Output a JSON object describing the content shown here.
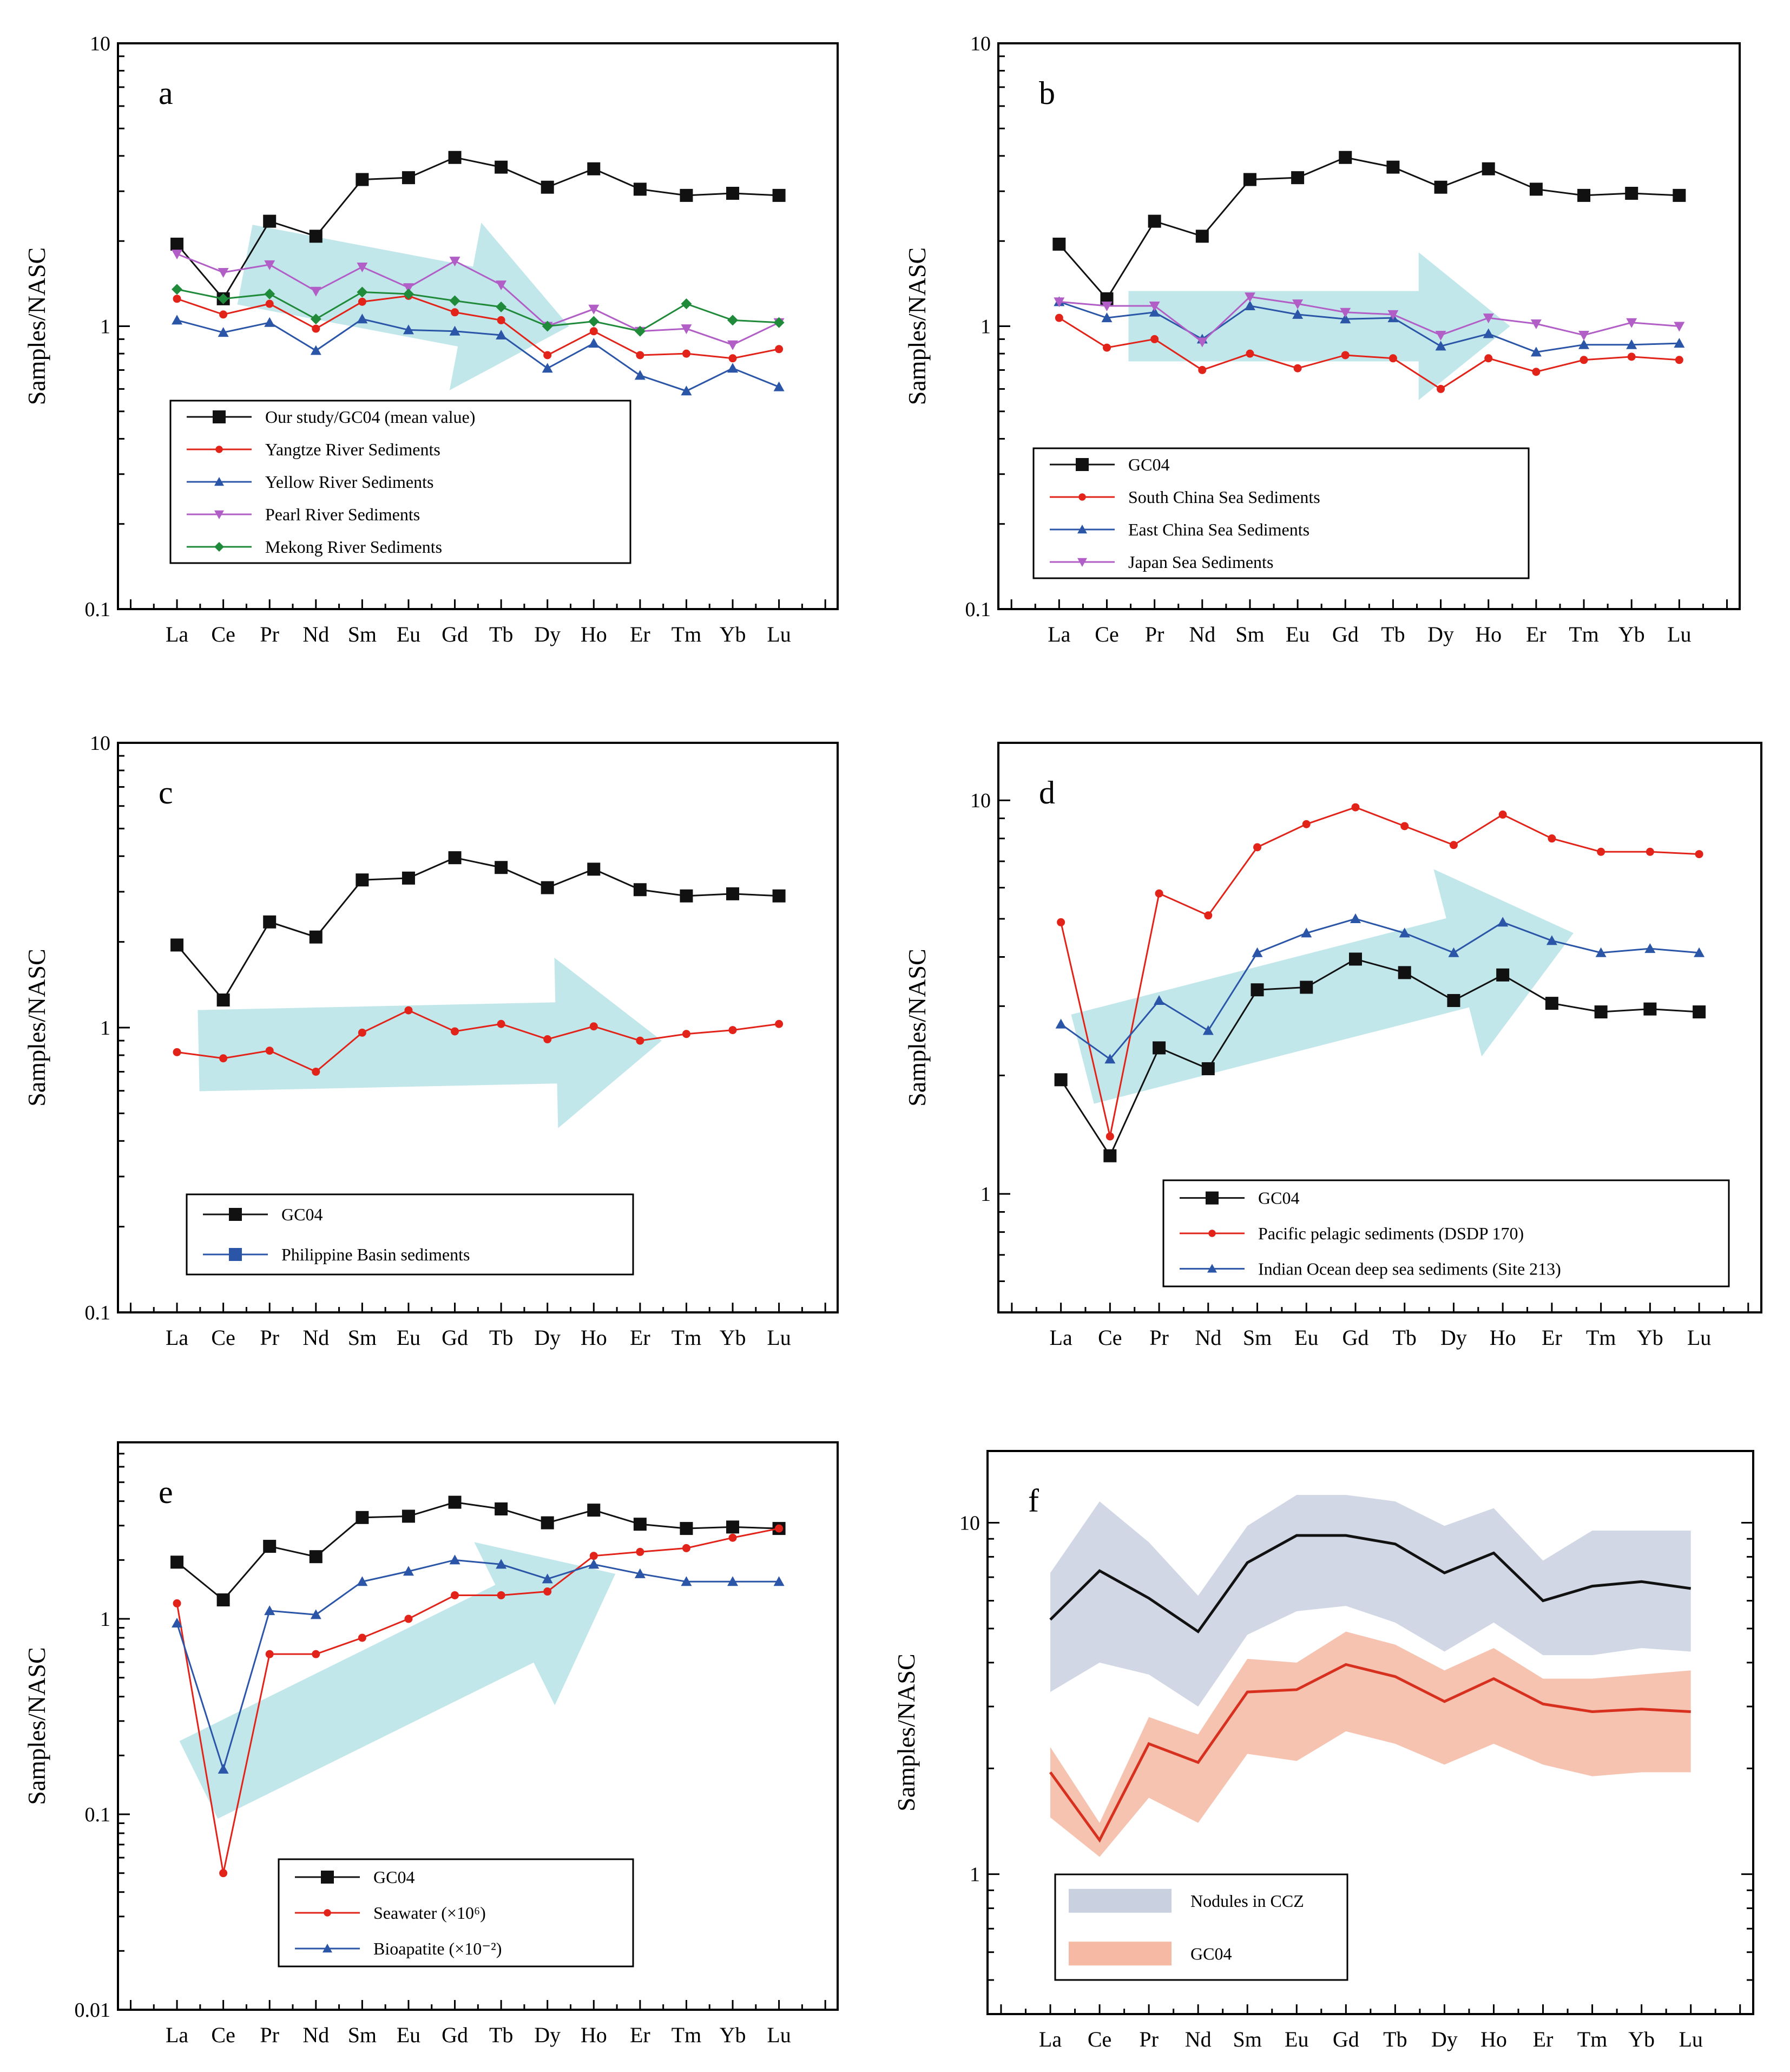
{
  "figure": {
    "x_elements": [
      "La",
      "Ce",
      "Pr",
      "Nd",
      "Sm",
      "Eu",
      "Gd",
      "Tb",
      "Dy",
      "Ho",
      "Er",
      "Tm",
      "Yb",
      "Lu"
    ],
    "colors": {
      "black": "#111111",
      "red": "#e2231a",
      "blue": "#2b56a8",
      "violet": "#b15ec6",
      "green": "#1f8a3a",
      "arrow": "#bfe6ea",
      "band_blue": "#c9d0e0",
      "band_red": "#f6b9a3",
      "line_red": "#d7301f"
    }
  },
  "chart_data": [
    {
      "panel": "a",
      "type": "line",
      "ylabel": "Samples/NASC",
      "yscale": "log",
      "ylim": [
        0.1,
        10
      ],
      "yticks": [
        0.1,
        1,
        10
      ],
      "ytick_labels": [
        "0.1",
        "1",
        "10"
      ],
      "categories": [
        "La",
        "Ce",
        "Pr",
        "Nd",
        "Sm",
        "Eu",
        "Gd",
        "Tb",
        "Dy",
        "Ho",
        "Er",
        "Tm",
        "Yb",
        "Lu"
      ],
      "series": [
        {
          "name": "Our study/GC04 (mean value)",
          "color": "#111111",
          "marker": "square",
          "values": [
            1.95,
            1.25,
            2.35,
            2.08,
            3.3,
            3.35,
            3.95,
            3.65,
            3.1,
            3.6,
            3.05,
            2.9,
            2.95,
            2.9
          ]
        },
        {
          "name": "Yangtze River Sediments",
          "color": "#e2231a",
          "marker": "circle",
          "values": [
            1.25,
            1.1,
            1.2,
            0.98,
            1.22,
            1.28,
            1.12,
            1.05,
            0.79,
            0.96,
            0.79,
            0.8,
            0.77,
            0.83
          ]
        },
        {
          "name": "Yellow River Sediments",
          "color": "#2b56a8",
          "marker": "triangle",
          "values": [
            1.05,
            0.95,
            1.03,
            0.82,
            1.06,
            0.97,
            0.96,
            0.93,
            0.71,
            0.87,
            0.67,
            0.59,
            0.71,
            0.61
          ]
        },
        {
          "name": "Pearl River Sediments",
          "color": "#b15ec6",
          "marker": "triangle-down",
          "values": [
            1.8,
            1.55,
            1.65,
            1.33,
            1.62,
            1.37,
            1.7,
            1.4,
            1.0,
            1.15,
            0.96,
            0.98,
            0.86,
            1.03
          ]
        },
        {
          "name": "Mekong River Sediments",
          "color": "#1f8a3a",
          "marker": "diamond",
          "values": [
            1.35,
            1.25,
            1.3,
            1.06,
            1.32,
            1.3,
            1.23,
            1.17,
            1.0,
            1.04,
            0.96,
            1.2,
            1.05,
            1.03
          ]
        }
      ],
      "arrow": {
        "from": [
          "Ce",
          1.65
        ],
        "to": [
          "Dy",
          1.0
        ]
      },
      "legend_position": "lower-left"
    },
    {
      "panel": "b",
      "type": "line",
      "ylabel": "Samples/NASC",
      "yscale": "log",
      "ylim": [
        0.1,
        10
      ],
      "yticks": [
        0.1,
        1,
        10
      ],
      "ytick_labels": [
        "0.1",
        "1",
        "10"
      ],
      "categories": [
        "La",
        "Ce",
        "Pr",
        "Nd",
        "Sm",
        "Eu",
        "Gd",
        "Tb",
        "Dy",
        "Ho",
        "Er",
        "Tm",
        "Yb",
        "Lu"
      ],
      "series": [
        {
          "name": "GC04",
          "color": "#111111",
          "marker": "square",
          "values": [
            1.95,
            1.25,
            2.35,
            2.08,
            3.3,
            3.35,
            3.95,
            3.65,
            3.1,
            3.6,
            3.05,
            2.9,
            2.95,
            2.9
          ]
        },
        {
          "name": "South China Sea Sediments",
          "color": "#e2231a",
          "marker": "circle",
          "values": [
            1.07,
            0.84,
            0.9,
            0.7,
            0.8,
            0.71,
            0.79,
            0.77,
            0.6,
            0.77,
            0.69,
            0.76,
            0.78,
            0.76
          ]
        },
        {
          "name": "East China Sea Sediments",
          "color": "#2b56a8",
          "marker": "triangle",
          "values": [
            1.22,
            1.07,
            1.12,
            0.9,
            1.18,
            1.1,
            1.06,
            1.07,
            0.85,
            0.94,
            0.81,
            0.86,
            0.86,
            0.87
          ]
        },
        {
          "name": "Japan Sea Sediments",
          "color": "#b15ec6",
          "marker": "triangle-down",
          "values": [
            1.22,
            1.18,
            1.18,
            0.88,
            1.27,
            1.2,
            1.12,
            1.1,
            0.93,
            1.07,
            1.02,
            0.93,
            1.03,
            1.0
          ]
        }
      ],
      "arrow": {
        "from": [
          "Ce",
          1.0
        ],
        "to": [
          "Ho",
          1.0
        ]
      },
      "legend_position": "lower-left"
    },
    {
      "panel": "c",
      "type": "line",
      "ylabel": "Samples/NASC",
      "yscale": "log",
      "ylim": [
        0.1,
        10
      ],
      "yticks": [
        0.1,
        1,
        10
      ],
      "ytick_labels": [
        "0.1",
        "1",
        "10"
      ],
      "categories": [
        "La",
        "Ce",
        "Pr",
        "Nd",
        "Sm",
        "Eu",
        "Gd",
        "Tb",
        "Dy",
        "Ho",
        "Er",
        "Tm",
        "Yb",
        "Lu"
      ],
      "series": [
        {
          "name": "GC04",
          "color": "#111111",
          "marker": "square",
          "values": [
            1.95,
            1.25,
            2.35,
            2.08,
            3.3,
            3.35,
            3.95,
            3.65,
            3.1,
            3.6,
            3.05,
            2.9,
            2.95,
            2.9
          ]
        },
        {
          "name": "Philippine Basin sediments",
          "color": "#e2231a",
          "legend_color": "#2b56a8",
          "legend_marker": "square",
          "marker": "circle",
          "values": [
            0.82,
            0.78,
            0.83,
            0.7,
            0.96,
            1.15,
            0.97,
            1.03,
            0.91,
            1.01,
            0.9,
            0.95,
            0.98,
            1.03
          ]
        }
      ],
      "arrow": {
        "from": [
          "La",
          0.83
        ],
        "to": [
          "Er",
          0.9
        ]
      },
      "legend_position": "lower-left"
    },
    {
      "panel": "d",
      "type": "line",
      "ylabel": "Samples/NASC",
      "yscale": "log",
      "ylim": [
        0.5,
        14
      ],
      "yticks": [
        1,
        10
      ],
      "ytick_labels": [
        "1",
        "10"
      ],
      "categories": [
        "La",
        "Ce",
        "Pr",
        "Nd",
        "Sm",
        "Eu",
        "Gd",
        "Tb",
        "Dy",
        "Ho",
        "Er",
        "Tm",
        "Yb",
        "Lu"
      ],
      "series": [
        {
          "name": "GC04",
          "color": "#111111",
          "marker": "square",
          "values": [
            1.95,
            1.25,
            2.35,
            2.08,
            3.3,
            3.35,
            3.95,
            3.65,
            3.1,
            3.6,
            3.05,
            2.9,
            2.95,
            2.9
          ]
        },
        {
          "name": "Pacific pelagic sediments (DSDP 170)",
          "color": "#e2231a",
          "marker": "circle",
          "values": [
            4.9,
            1.4,
            5.8,
            5.1,
            7.6,
            8.7,
            9.6,
            8.6,
            7.7,
            9.2,
            8.0,
            7.4,
            7.4,
            7.3
          ]
        },
        {
          "name": "Indian Ocean deep sea sediments (Site 213)",
          "color": "#2b56a8",
          "marker": "triangle",
          "values": [
            2.7,
            2.2,
            3.1,
            2.6,
            4.1,
            4.6,
            5.0,
            4.6,
            4.1,
            4.9,
            4.4,
            4.1,
            4.2,
            4.1
          ]
        }
      ],
      "arrow": {
        "from": [
          "La",
          2.2
        ],
        "to": [
          "Er",
          4.6
        ]
      },
      "legend_position": "bottom-right"
    },
    {
      "panel": "e",
      "type": "line",
      "ylabel": "Samples/NASC",
      "yscale": "log",
      "ylim": [
        0.01,
        8
      ],
      "yticks": [
        0.01,
        0.1,
        1
      ],
      "ytick_labels": [
        "0.01",
        "0.1",
        "1"
      ],
      "categories": [
        "La",
        "Ce",
        "Pr",
        "Nd",
        "Sm",
        "Eu",
        "Gd",
        "Tb",
        "Dy",
        "Ho",
        "Er",
        "Tm",
        "Yb",
        "Lu"
      ],
      "series": [
        {
          "name": "GC04",
          "color": "#111111",
          "marker": "square",
          "values": [
            1.95,
            1.25,
            2.35,
            2.08,
            3.3,
            3.35,
            3.95,
            3.65,
            3.1,
            3.6,
            3.05,
            2.9,
            2.95,
            2.9
          ]
        },
        {
          "name": "Seawater (×10⁶)",
          "color": "#e2231a",
          "marker": "circle",
          "values": [
            1.2,
            0.05,
            0.66,
            0.66,
            0.8,
            1.0,
            1.32,
            1.32,
            1.38,
            2.1,
            2.2,
            2.3,
            2.6,
            2.9
          ]
        },
        {
          "name": "Bioapatite (×10⁻²)",
          "color": "#2b56a8",
          "marker": "triangle",
          "values": [
            0.95,
            0.17,
            1.1,
            1.05,
            1.55,
            1.75,
            2.0,
            1.9,
            1.6,
            1.9,
            1.7,
            1.55,
            1.55,
            1.55
          ]
        }
      ],
      "arrow": {
        "from": [
          "La",
          0.15
        ],
        "to": [
          "Ho",
          1.7
        ]
      },
      "legend_position": "bottom-center"
    },
    {
      "panel": "f",
      "type": "area",
      "ylabel": "Samples/NASC",
      "yscale": "log",
      "ylim": [
        0.4,
        16
      ],
      "yticks": [
        1,
        10
      ],
      "ytick_labels": [
        "1",
        "10"
      ],
      "categories": [
        "La",
        "Ce",
        "Pr",
        "Nd",
        "Sm",
        "Eu",
        "Gd",
        "Tb",
        "Dy",
        "Ho",
        "Er",
        "Tm",
        "Yb",
        "Lu"
      ],
      "series": [
        {
          "name": "Nodules in CCZ",
          "color": "#c9d0e0",
          "line_color": "#111111",
          "mean": [
            5.3,
            7.3,
            6.1,
            4.9,
            7.7,
            9.2,
            9.2,
            8.7,
            7.2,
            8.2,
            6.0,
            6.6,
            6.8,
            6.5
          ],
          "upper": [
            7.2,
            11.5,
            8.8,
            6.2,
            9.8,
            12.0,
            12.0,
            11.5,
            9.8,
            11.0,
            7.8,
            9.5,
            9.5,
            9.5
          ],
          "lower": [
            3.3,
            4.0,
            3.7,
            3.0,
            4.8,
            5.6,
            5.8,
            5.2,
            4.3,
            5.2,
            4.2,
            4.2,
            4.4,
            4.3
          ]
        },
        {
          "name": "GC04",
          "color": "#f6b9a3",
          "line_color": "#d7301f",
          "mean": [
            1.95,
            1.25,
            2.35,
            2.08,
            3.3,
            3.35,
            3.95,
            3.65,
            3.1,
            3.6,
            3.05,
            2.9,
            2.95,
            2.9
          ],
          "upper": [
            2.3,
            1.4,
            2.8,
            2.5,
            4.1,
            4.0,
            4.9,
            4.5,
            3.8,
            4.4,
            3.6,
            3.6,
            3.7,
            3.8
          ],
          "lower": [
            1.45,
            1.12,
            1.65,
            1.4,
            2.2,
            2.1,
            2.55,
            2.35,
            2.05,
            2.35,
            2.05,
            1.9,
            1.95,
            1.95
          ]
        }
      ],
      "legend_position": "lower-left"
    }
  ]
}
